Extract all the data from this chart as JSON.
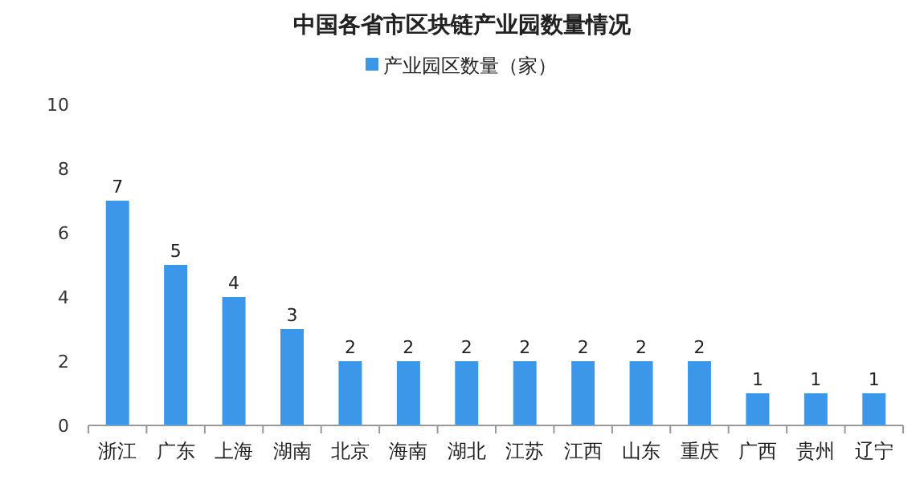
{
  "chart_data": {
    "type": "bar",
    "title": "中国各省市区块链产业园数量情况",
    "categories": [
      "浙江",
      "广东",
      "上海",
      "湖南",
      "北京",
      "海南",
      "湖北",
      "江苏",
      "江西",
      "山东",
      "重庆",
      "广西",
      "贵州",
      "辽宁"
    ],
    "series": [
      {
        "name": "产业园区数量（家）",
        "color": "#3d97e8",
        "values": [
          7,
          5,
          4,
          3,
          2,
          2,
          2,
          2,
          2,
          2,
          2,
          1,
          1,
          1
        ]
      }
    ],
    "ylim": [
      0,
      10
    ],
    "yticks": [
      0,
      2,
      4,
      6,
      8,
      10
    ],
    "legend": "top",
    "data_labels": true
  }
}
